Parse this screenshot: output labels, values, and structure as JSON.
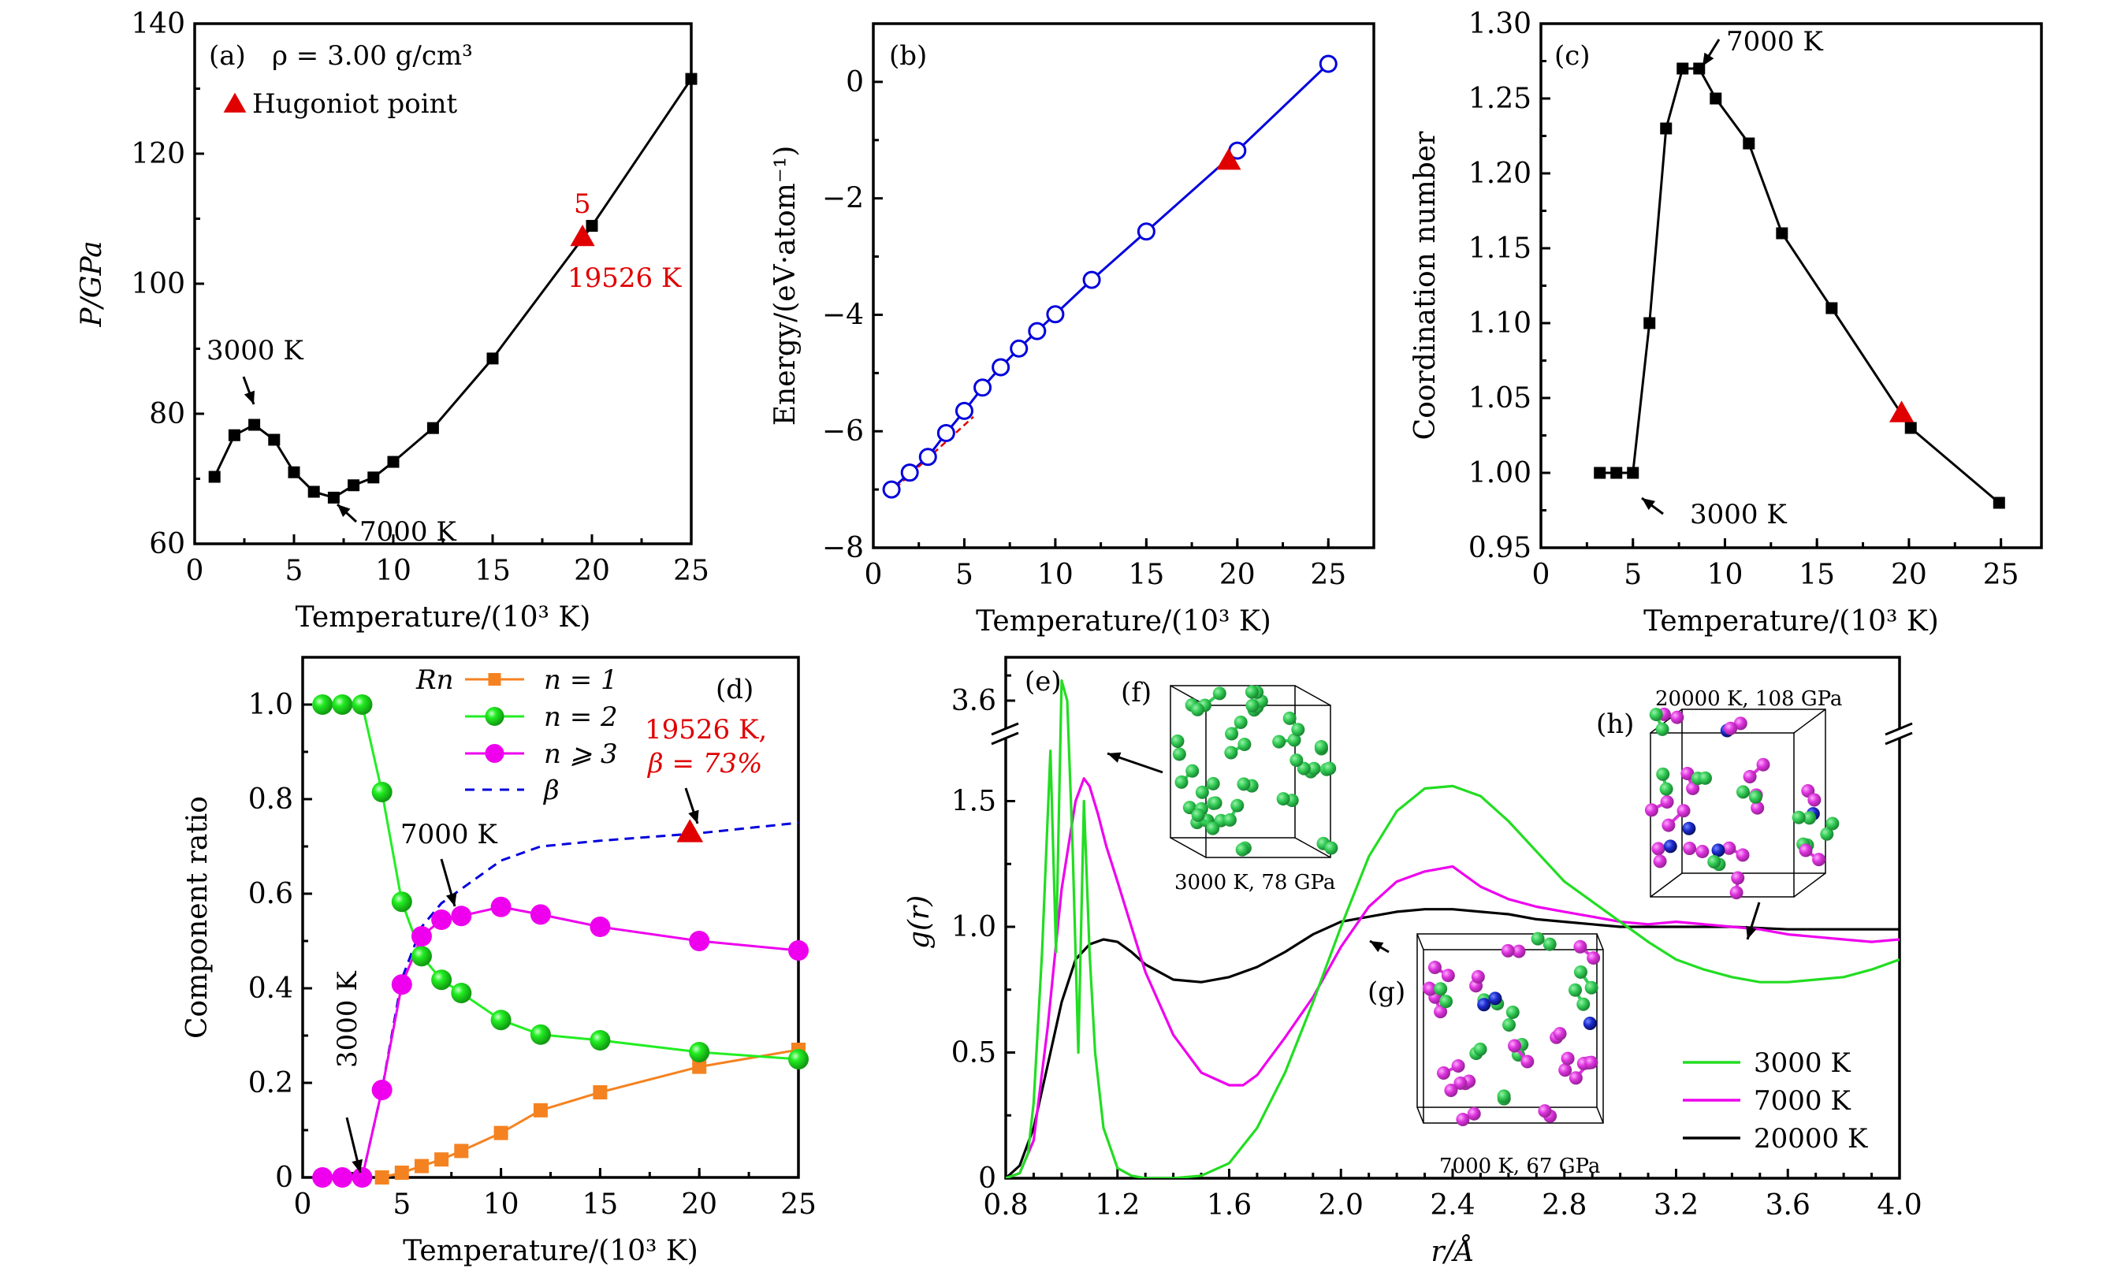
{
  "chart_data": [
    {
      "id": "a",
      "type": "line",
      "panel_label": "(a)",
      "title_note": "ρ = 3.00 g/cm³",
      "xlabel": "Temperature/(10³ K)",
      "ylabel": "P/GPa",
      "xlim": [
        0,
        25
      ],
      "ylim": [
        60,
        140
      ],
      "xticks": [
        0,
        5,
        10,
        15,
        20,
        25
      ],
      "yticks": [
        60,
        80,
        100,
        120,
        140
      ],
      "series": [
        {
          "name": "P",
          "color": "#000000",
          "marker": "square",
          "x": [
            1,
            2,
            3,
            4,
            5,
            6,
            7,
            8,
            9,
            10,
            12,
            15,
            20,
            25
          ],
          "y": [
            70.3,
            76.7,
            78.3,
            76.0,
            71.0,
            68.0,
            67.1,
            69.0,
            70.2,
            72.6,
            77.8,
            88.5,
            108.9,
            131.5
          ]
        }
      ],
      "hugoniot": {
        "x": 19.526,
        "y": 107.2,
        "color": "#e00000"
      },
      "legend": [
        {
          "label": "Hugoniot point",
          "marker": "triangle",
          "color": "#e00000"
        }
      ],
      "annotations": [
        {
          "text": "3000 K",
          "color": "#000000"
        },
        {
          "text": "7000 K",
          "color": "#000000"
        },
        {
          "text": "5",
          "color": "#e00000"
        },
        {
          "text": "19526 K",
          "color": "#e00000"
        }
      ]
    },
    {
      "id": "b",
      "type": "line",
      "panel_label": "(b)",
      "xlabel": "Temperature/(10³ K)",
      "ylabel": "Energy/(eV·atom⁻¹)",
      "xlim": [
        0,
        27.5
      ],
      "ylim": [
        -8,
        1
      ],
      "xticks": [
        0,
        5,
        10,
        15,
        20,
        25
      ],
      "yticks": [
        -8,
        -6,
        -4,
        -2,
        0
      ],
      "ytick_labels": [
        "−8",
        "−6",
        "−4",
        "−2",
        "0"
      ],
      "series": [
        {
          "name": "Energy",
          "color": "#0000dd",
          "marker": "open-circle",
          "x": [
            1,
            2,
            3,
            4,
            5,
            6,
            7,
            8,
            9,
            10,
            12,
            15,
            20,
            25
          ],
          "y": [
            -7.0,
            -6.71,
            -6.44,
            -6.03,
            -5.65,
            -5.25,
            -4.9,
            -4.58,
            -4.28,
            -3.99,
            -3.4,
            -2.57,
            -1.18,
            0.31
          ]
        },
        {
          "name": "fit",
          "color": "#e00000",
          "style": "dashed",
          "x": [
            0.8,
            5.5
          ],
          "y": [
            -7.09,
            -5.75
          ]
        }
      ],
      "hugoniot": {
        "x": 19.526,
        "y": -1.35,
        "color": "#e00000"
      }
    },
    {
      "id": "c",
      "type": "line",
      "panel_label": "(c)",
      "xlabel": "Temperature/(10³ K)",
      "ylabel": "Coordination number",
      "xlim": [
        0,
        27.2
      ],
      "ylim": [
        0.95,
        1.3
      ],
      "xticks": [
        0,
        5,
        10,
        15,
        20,
        25
      ],
      "yticks": [
        0.95,
        1.0,
        1.05,
        1.1,
        1.15,
        1.2,
        1.25,
        1.3
      ],
      "ytick_labels": [
        "0.95",
        "1.00",
        "1.05",
        "1.10",
        "1.15",
        "1.20",
        "1.25",
        "1.30"
      ],
      "series": [
        {
          "name": "CN",
          "color": "#000000",
          "marker": "square",
          "x": [
            3.2,
            4.1,
            5.0,
            5.9,
            6.8,
            7.7,
            8.6,
            9.5,
            11.3,
            13.1,
            15.8,
            20.1,
            24.9
          ],
          "y": [
            1.0,
            1.0,
            1.0,
            1.1,
            1.23,
            1.27,
            1.27,
            1.25,
            1.22,
            1.16,
            1.11,
            1.03,
            0.98
          ]
        }
      ],
      "hugoniot": {
        "x": 19.6,
        "y": 1.04,
        "color": "#e00000"
      },
      "annotations": [
        {
          "text": "7000 K",
          "color": "#000000"
        },
        {
          "text": "3000 K",
          "color": "#000000"
        }
      ]
    },
    {
      "id": "d",
      "type": "line",
      "panel_label": "(d)",
      "xlabel": "Temperature/(10³ K)",
      "ylabel": "Component ratio",
      "xlim": [
        0,
        25
      ],
      "ylim": [
        0,
        1.1
      ],
      "xticks": [
        0,
        5,
        10,
        15,
        20,
        25
      ],
      "yticks": [
        0,
        0.2,
        0.4,
        0.6,
        0.8,
        1.0
      ],
      "ytick_labels": [
        "0",
        "0.2",
        "0.4",
        "0.6",
        "0.8",
        "1.0"
      ],
      "legend_title": "Rn",
      "series": [
        {
          "name": "n = 1",
          "color": "#f58220",
          "marker": "square",
          "x": [
            4,
            5,
            6,
            7,
            8,
            10,
            12,
            15,
            20,
            25
          ],
          "y": [
            0.0,
            0.01,
            0.024,
            0.038,
            0.056,
            0.094,
            0.142,
            0.18,
            0.234,
            0.27
          ]
        },
        {
          "name": "n = 2",
          "color": "#22ee22",
          "marker": "circle",
          "x": [
            1,
            2,
            3,
            4,
            5,
            6,
            7,
            8,
            10,
            12,
            15,
            20,
            25
          ],
          "y": [
            1.0,
            1.0,
            1.0,
            0.815,
            0.583,
            0.468,
            0.418,
            0.39,
            0.333,
            0.302,
            0.29,
            0.265,
            0.25
          ]
        },
        {
          "name": "n ⩾ 3",
          "color": "#ee00ee",
          "marker": "circle",
          "x": [
            1,
            2,
            3,
            4,
            5,
            6,
            7,
            8,
            10,
            12,
            15,
            20,
            25
          ],
          "y": [
            0.0,
            0.0,
            0.0,
            0.185,
            0.408,
            0.51,
            0.545,
            0.553,
            0.572,
            0.556,
            0.53,
            0.5,
            0.48
          ]
        },
        {
          "name": "β",
          "color": "#0000dd",
          "style": "dashed",
          "x": [
            3,
            4,
            5,
            6,
            7,
            8,
            9,
            10,
            12,
            15,
            20,
            25
          ],
          "y": [
            0.0,
            0.185,
            0.42,
            0.53,
            0.58,
            0.61,
            0.64,
            0.67,
            0.7,
            0.712,
            0.728,
            0.75
          ]
        }
      ],
      "hugoniot": {
        "x": 19.526,
        "y": 0.73,
        "color": "#e00000"
      },
      "annotations": [
        {
          "text": "7000 K",
          "color": "#000000"
        },
        {
          "text": "3000 K",
          "color": "#000000"
        },
        {
          "text": "19526 K,",
          "color": "#e00000"
        },
        {
          "text": "β = 73%",
          "color": "#e00000"
        }
      ]
    },
    {
      "id": "e",
      "type": "line",
      "panel_label": "(e)",
      "xlabel": "r/Å",
      "ylabel": "g(r)",
      "xlim": [
        0.8,
        4.0
      ],
      "ylim": [
        0,
        1.8
      ],
      "ylim_upper_segment": [
        3.55,
        3.7
      ],
      "axis_break": true,
      "xticks": [
        0.8,
        1.2,
        1.6,
        2.0,
        2.4,
        2.8,
        3.2,
        3.6,
        4.0
      ],
      "xtick_labels": [
        "0.8",
        "1.2",
        "1.6",
        "2.0",
        "2.4",
        "2.8",
        "3.2",
        "3.6",
        "4.0"
      ],
      "yticks": [
        0,
        0.5,
        1.0,
        1.5,
        3.6
      ],
      "ytick_labels": [
        "0",
        "0.5",
        "1.0",
        "1.5",
        "3.6"
      ],
      "legend_position": "bottom-right",
      "series": [
        {
          "name": "3000 K",
          "color": "#22dd22",
          "x": [
            0.8,
            0.85,
            0.88,
            0.9,
            0.93,
            0.96,
            0.98,
            1.0,
            1.02,
            1.04,
            1.06,
            1.08,
            1.1,
            1.12,
            1.15,
            1.2,
            1.25,
            1.3,
            1.4,
            1.5,
            1.6,
            1.7,
            1.8,
            1.9,
            2.0,
            2.1,
            2.2,
            2.3,
            2.4,
            2.5,
            2.6,
            2.7,
            2.8,
            2.9,
            3.0,
            3.1,
            3.2,
            3.3,
            3.4,
            3.5,
            3.6,
            3.7,
            3.8,
            3.9,
            4.0
          ],
          "y": [
            0,
            0.02,
            0.1,
            0.3,
            0.9,
            1.7,
            2.6,
            3.68,
            3.6,
            3.0,
            2.2,
            1.5,
            0.9,
            0.5,
            0.2,
            0.04,
            0.01,
            0.0,
            0.0,
            0.01,
            0.06,
            0.2,
            0.42,
            0.7,
            1.0,
            1.28,
            1.46,
            1.55,
            1.56,
            1.52,
            1.42,
            1.3,
            1.18,
            1.1,
            1.02,
            0.94,
            0.87,
            0.83,
            0.8,
            0.78,
            0.78,
            0.79,
            0.8,
            0.83,
            0.87
          ]
        },
        {
          "name": "7000 K",
          "color": "#ee00ee",
          "x": [
            0.8,
            0.85,
            0.9,
            0.95,
            1.0,
            1.05,
            1.08,
            1.1,
            1.13,
            1.16,
            1.2,
            1.25,
            1.3,
            1.4,
            1.5,
            1.6,
            1.65,
            1.7,
            1.8,
            1.9,
            2.0,
            2.1,
            2.2,
            2.3,
            2.4,
            2.5,
            2.6,
            2.7,
            2.8,
            2.9,
            3.0,
            3.1,
            3.2,
            3.3,
            3.4,
            3.5,
            3.6,
            3.7,
            3.8,
            3.9,
            4.0
          ],
          "y": [
            0,
            0.02,
            0.15,
            0.6,
            1.15,
            1.5,
            1.59,
            1.56,
            1.45,
            1.32,
            1.18,
            1.0,
            0.82,
            0.57,
            0.42,
            0.37,
            0.37,
            0.41,
            0.56,
            0.72,
            0.92,
            1.08,
            1.18,
            1.22,
            1.24,
            1.16,
            1.11,
            1.08,
            1.06,
            1.04,
            1.02,
            1.01,
            1.02,
            1.01,
            1.0,
            0.99,
            0.97,
            0.96,
            0.95,
            0.94,
            0.95
          ]
        },
        {
          "name": "20000 K",
          "color": "#000000",
          "x": [
            0.8,
            0.85,
            0.9,
            0.95,
            1.0,
            1.05,
            1.1,
            1.15,
            1.2,
            1.25,
            1.3,
            1.4,
            1.5,
            1.6,
            1.7,
            1.8,
            1.9,
            2.0,
            2.1,
            2.2,
            2.3,
            2.4,
            2.5,
            2.6,
            2.7,
            2.8,
            2.9,
            3.0,
            3.2,
            3.4,
            3.6,
            3.8,
            4.0
          ],
          "y": [
            0,
            0.05,
            0.2,
            0.45,
            0.7,
            0.87,
            0.93,
            0.95,
            0.94,
            0.9,
            0.85,
            0.79,
            0.78,
            0.8,
            0.84,
            0.9,
            0.97,
            1.02,
            1.04,
            1.06,
            1.07,
            1.07,
            1.06,
            1.05,
            1.03,
            1.02,
            1.01,
            1.0,
            1.0,
            1.0,
            0.99,
            0.99,
            0.99
          ]
        }
      ],
      "insets": [
        {
          "label": "(f)",
          "caption": "3000 K, 78 GPa"
        },
        {
          "label": "(g)",
          "caption": "7000 K, 67 GPa"
        },
        {
          "label": "(h)",
          "caption": "20000 K, 108 GPa"
        }
      ]
    }
  ],
  "colors": {
    "hugoniot": "#e00000",
    "n1": "#f58220",
    "n2": "#22ee22",
    "n3": "#ee00ee",
    "beta": "#0000dd",
    "atom_green": "#33cc55",
    "atom_magenta": "#dd33dd",
    "atom_blue": "#1a2acc"
  }
}
